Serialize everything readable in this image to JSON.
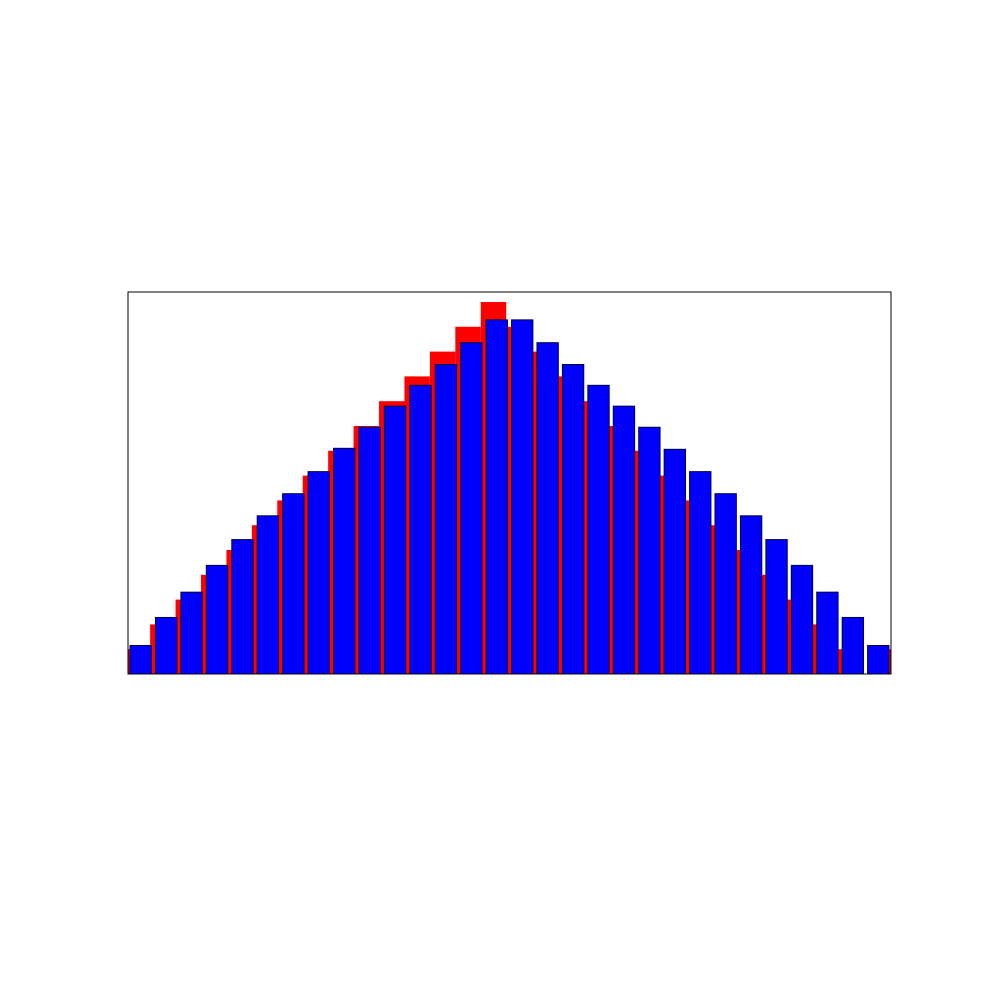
{
  "chart_data": {
    "type": "bar",
    "title": "",
    "xlabel": "",
    "ylabel": "",
    "grid": false,
    "legend": "none",
    "ylim": [
      0,
      15
    ],
    "series": [
      {
        "color": "#ff0000",
        "x": [
          0,
          1,
          2,
          3,
          4,
          5,
          6,
          7,
          8,
          9,
          10,
          11,
          12,
          13,
          14,
          15,
          16,
          17,
          18,
          19,
          20,
          21,
          22,
          23,
          24,
          25,
          26,
          27,
          28,
          29,
          30
        ],
        "values": [
          1,
          2,
          3,
          4,
          5,
          6,
          7,
          8,
          9,
          10,
          11,
          12,
          13,
          14,
          15,
          14,
          13,
          12,
          11,
          10,
          9,
          8,
          7,
          6,
          5,
          4,
          3,
          2,
          1,
          0,
          1
        ]
      },
      {
        "color": "#0000ff",
        "x": [
          0,
          1,
          2,
          3,
          4,
          5,
          6,
          7,
          8,
          9,
          10,
          11,
          12,
          13,
          14,
          15,
          16,
          17,
          18,
          19,
          20,
          21,
          22,
          23,
          24,
          25,
          26,
          27,
          28,
          29
        ],
        "values": [
          1.15,
          2.28,
          3.3,
          4.38,
          5.42,
          6.38,
          7.27,
          8.16,
          9.1,
          9.95,
          10.8,
          11.64,
          12.48,
          13.36,
          14.28,
          14.28,
          13.36,
          12.48,
          11.64,
          10.8,
          9.95,
          9.06,
          8.16,
          7.27,
          6.38,
          5.42,
          4.38,
          3.3,
          2.28,
          1.15
        ]
      }
    ]
  }
}
